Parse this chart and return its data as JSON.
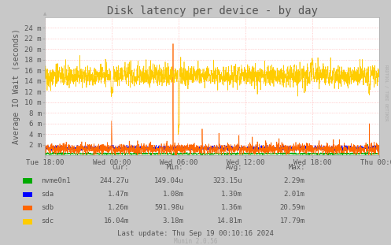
{
  "title": "Disk latency per device - by day",
  "ylabel": "Average IO Wait (seconds)",
  "background_color": "#C8C8C8",
  "plot_bg_color": "#FFFFFF",
  "grid_color_x": "#FFAAAA",
  "grid_color_y": "#FFAAAA",
  "x_labels": [
    "Tue 18:00",
    "Wed 00:00",
    "Wed 06:00",
    "Wed 12:00",
    "Wed 18:00",
    "Thu 00:00"
  ],
  "x_ticks_frac": [
    0.0,
    0.2,
    0.4,
    0.6,
    0.8,
    1.0
  ],
  "total_points": 2000,
  "ylim": [
    0,
    26
  ],
  "yticks": [
    2,
    4,
    6,
    8,
    10,
    12,
    14,
    16,
    18,
    20,
    22,
    24
  ],
  "ytick_labels": [
    "2 m",
    "4 m",
    "6 m",
    "8 m",
    "10 m",
    "12 m",
    "14 m",
    "16 m",
    "18 m",
    "20 m",
    "22 m",
    "24 m"
  ],
  "series": {
    "nvme0n1": {
      "color": "#00AA00",
      "base": 0.35,
      "noise": 0.12
    },
    "sda": {
      "color": "#0000FF",
      "base": 1.4,
      "noise": 0.25
    },
    "sdb": {
      "color": "#FF6600",
      "base": 1.2,
      "noise": 0.6
    },
    "sdc": {
      "color": "#FFCC00",
      "base": 15.0,
      "noise": 1.0
    }
  },
  "legend": [
    {
      "label": "nvme0n1",
      "color": "#00AA00"
    },
    {
      "label": "sda",
      "color": "#0000FF"
    },
    {
      "label": "sdb",
      "color": "#FF6600"
    },
    {
      "label": "sdc",
      "color": "#FFCC00"
    }
  ],
  "table_headers": [
    "Cur:",
    "Min:",
    "Avg:",
    "Max:"
  ],
  "table_rows": [
    {
      "name": "nvme0n1",
      "color": "#00AA00",
      "vals": [
        "244.27u",
        "149.04u",
        "323.15u",
        "2.29m"
      ]
    },
    {
      "name": "sda",
      "color": "#0000FF",
      "vals": [
        "1.47m",
        "1.08m",
        "1.30m",
        "2.01m"
      ]
    },
    {
      "name": "sdb",
      "color": "#FF6600",
      "vals": [
        "1.26m",
        "591.98u",
        "1.36m",
        "20.59m"
      ]
    },
    {
      "name": "sdc",
      "color": "#FFCC00",
      "vals": [
        "16.04m",
        "3.18m",
        "14.81m",
        "17.79m"
      ]
    }
  ],
  "footer": "Last update: Thu Sep 19 00:10:16 2024",
  "munin_version": "Munin 2.0.56",
  "rrdtool_label": "RRDTOOL / TOBI OETIKER",
  "title_fontsize": 10,
  "axis_label_fontsize": 7,
  "tick_fontsize": 6.5,
  "table_fontsize": 6.5
}
